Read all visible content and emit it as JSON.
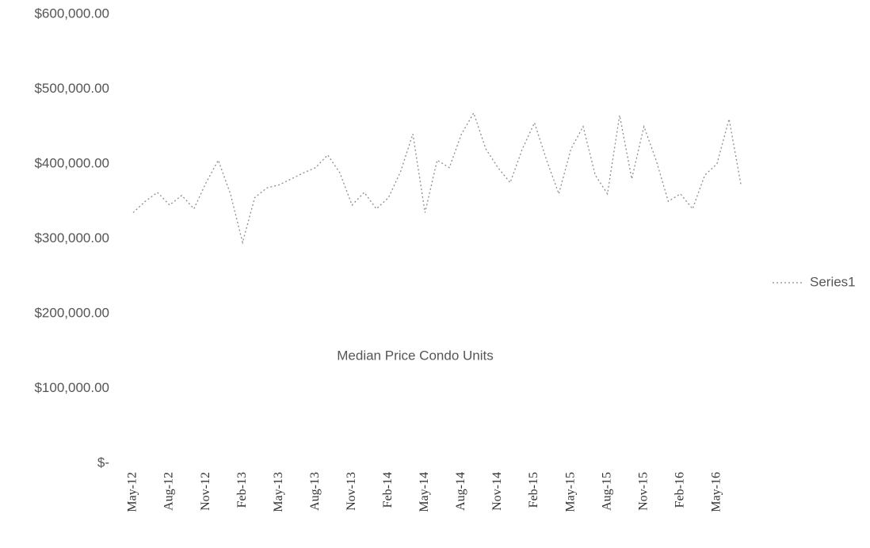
{
  "chart_data": {
    "type": "line",
    "title": "Median Price Condo Units",
    "categories": [
      "May-12",
      null,
      null,
      "Aug-12",
      null,
      null,
      "Nov-12",
      null,
      null,
      "Feb-13",
      null,
      null,
      "May-13",
      null,
      null,
      "Aug-13",
      null,
      null,
      "Nov-13",
      null,
      null,
      "Feb-14",
      null,
      null,
      "May-14",
      null,
      null,
      "Aug-14",
      null,
      null,
      "Nov-14",
      null,
      null,
      "Feb-15",
      null,
      null,
      "May-15",
      null,
      null,
      "Aug-15",
      null,
      null,
      "Nov-15",
      null,
      null,
      "Feb-16",
      null,
      null,
      "May-16",
      null,
      null
    ],
    "series": [
      {
        "name": "Series1",
        "color": "#8c8c8c",
        "values": [
          335000,
          350000,
          362000,
          345000,
          358000,
          340000,
          375000,
          405000,
          360000,
          295000,
          355000,
          368000,
          372000,
          380000,
          388000,
          395000,
          412000,
          388000,
          345000,
          362000,
          340000,
          355000,
          390000,
          440000,
          335000,
          405000,
          395000,
          440000,
          468000,
          420000,
          395000,
          375000,
          420000,
          455000,
          405000,
          360000,
          420000,
          450000,
          385000,
          360000,
          465000,
          380000,
          450000,
          405000,
          350000,
          360000,
          340000,
          385000,
          400000,
          460000,
          370000
        ]
      }
    ],
    "ylim": [
      0,
      600000
    ],
    "yticks": [
      {
        "value": 0,
        "label": "$-"
      },
      {
        "value": 100000,
        "label": "$100,000.00"
      },
      {
        "value": 200000,
        "label": "$200,000.00"
      },
      {
        "value": 300000,
        "label": "$300,000.00"
      },
      {
        "value": 400000,
        "label": "$400,000.00"
      },
      {
        "value": 500000,
        "label": "$500,000.00"
      },
      {
        "value": 600000,
        "label": "$600,000.00"
      }
    ],
    "legend": "right"
  }
}
